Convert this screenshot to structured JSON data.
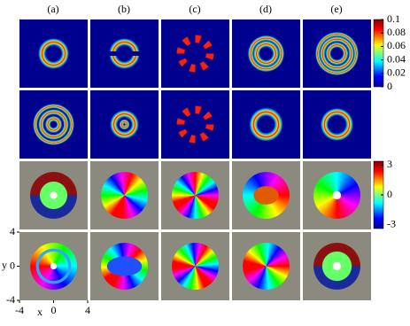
{
  "columns": [
    "(a)",
    "(b)",
    "(c)",
    "(d)",
    "(e)"
  ],
  "colorbars": [
    {
      "lim": [
        0,
        0.1
      ],
      "ticks": [
        0.1,
        0.08,
        0.06,
        0.04,
        0.02,
        0
      ]
    },
    {
      "lim": [
        -3.4,
        3.4
      ],
      "ticks": [
        3,
        0,
        -3
      ]
    }
  ],
  "axes": {
    "x_label": "x",
    "y_label": "y",
    "xlim": [
      -4,
      4
    ],
    "ylim": [
      -4,
      4
    ],
    "xticks": [
      -4,
      0,
      4
    ],
    "yticks": [
      4,
      0,
      -4
    ]
  }
}
